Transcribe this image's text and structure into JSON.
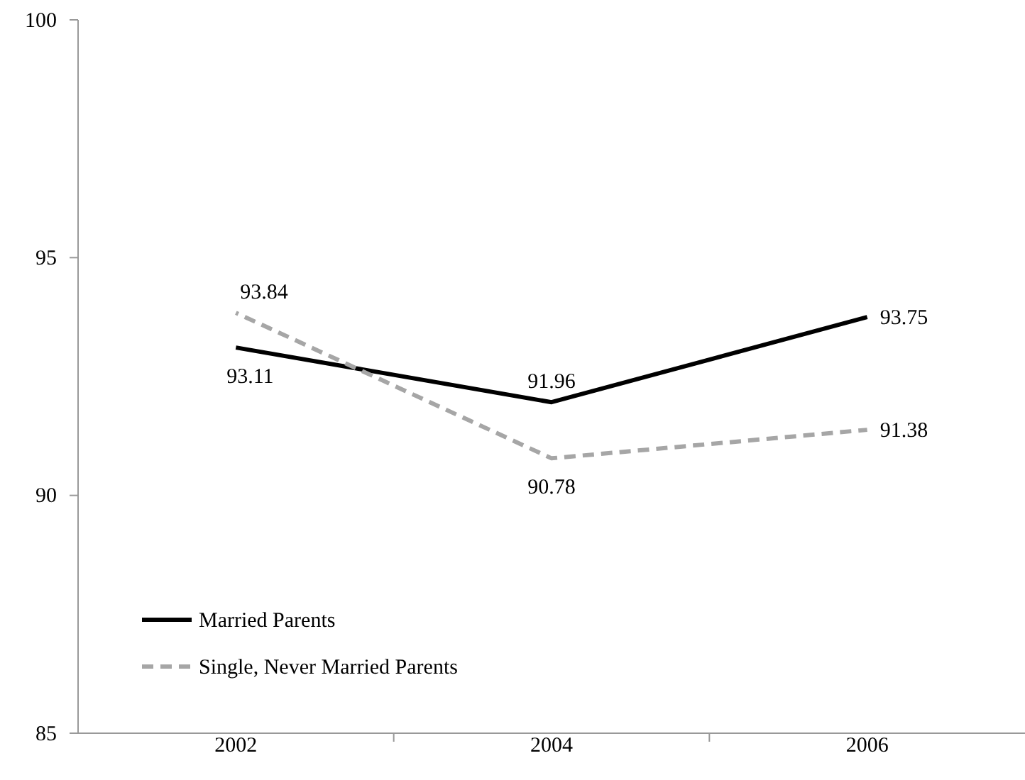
{
  "chart_data": {
    "type": "line",
    "categories": [
      "2002",
      "2004",
      "2006"
    ],
    "series": [
      {
        "name": "Married Parents",
        "color": "#000000",
        "values": [
          93.11,
          91.96,
          93.75
        ],
        "line_style": "solid"
      },
      {
        "name": "Single, Never Married Parents",
        "color": "#a6a6a6",
        "values": [
          93.84,
          90.78,
          91.38
        ],
        "line_style": "dashed"
      }
    ],
    "ylim": [
      85,
      100
    ],
    "yticks": [
      85,
      90,
      95,
      100
    ],
    "grid": false,
    "legend": "bottom left",
    "data_labels": true,
    "marker": "none"
  }
}
